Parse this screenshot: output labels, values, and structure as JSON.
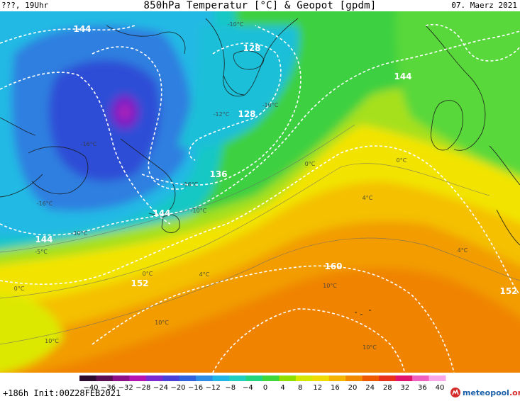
{
  "header": {
    "left_label": "???, 19Uhr",
    "title": "850hPa Temperatur [°C] & Geopot [gpdm]",
    "date": "07. Maerz 2021"
  },
  "footer": {
    "run_info": "+186h Init:00Z28FEB2021",
    "brand_name": "meteopool",
    "brand_tld": ".org"
  },
  "colorbar": {
    "tick_labels": [
      "−40",
      "−36",
      "−32",
      "−28",
      "−24",
      "−20",
      "−16",
      "−12",
      "−8",
      "−4",
      "0",
      "4",
      "8",
      "12",
      "16",
      "20",
      "24",
      "28",
      "32",
      "36",
      "40"
    ],
    "colors": [
      "#2b0b2e",
      "#5a0f55",
      "#8c1088",
      "#b414b4",
      "#7a2ad0",
      "#4a3fd8",
      "#2f62dc",
      "#2e8ee6",
      "#22b6e6",
      "#1fd0c0",
      "#22d680",
      "#3ed83a",
      "#8ee000",
      "#d4e800",
      "#f0dc00",
      "#f4b400",
      "#f28a00",
      "#ef5a00",
      "#e8301a",
      "#e0146c",
      "#f060c0",
      "#f8a8e8"
    ]
  },
  "contour_labels": [
    {
      "text": "144"
    },
    {
      "text": "128"
    },
    {
      "text": "128"
    },
    {
      "text": "136"
    },
    {
      "text": "144"
    },
    {
      "text": "144"
    },
    {
      "text": "152"
    },
    {
      "text": "160"
    },
    {
      "text": "152"
    },
    {
      "text": "144"
    }
  ],
  "isotherm_labels": [
    {
      "text": "-10°C"
    },
    {
      "text": "-16°C"
    },
    {
      "text": "-16°C"
    },
    {
      "text": "-16°C"
    },
    {
      "text": "-10°C"
    },
    {
      "text": "-10°C"
    },
    {
      "text": "-5°C"
    },
    {
      "text": "0°C"
    },
    {
      "text": "0°C"
    },
    {
      "text": "4°C"
    },
    {
      "text": "0°C"
    },
    {
      "text": "4°C"
    },
    {
      "text": "4°C"
    },
    {
      "text": "10°C"
    },
    {
      "text": "10°C"
    },
    {
      "text": "10°C"
    },
    {
      "text": "10°C"
    },
    {
      "text": "0°C"
    },
    {
      "text": "-10°C"
    },
    {
      "text": "-12°C"
    }
  ],
  "colors": {
    "cold_core": "#7a1fc4",
    "dark_blue": "#2f47d0",
    "blue": "#2f7fe0",
    "cyan": "#18c0d8",
    "teal": "#1fd29a",
    "green": "#3ecf3a",
    "lime": "#a8e020",
    "yellow": "#f2e600",
    "amber": "#f4b800",
    "orange": "#f29400",
    "deep_orange": "#f08000"
  }
}
